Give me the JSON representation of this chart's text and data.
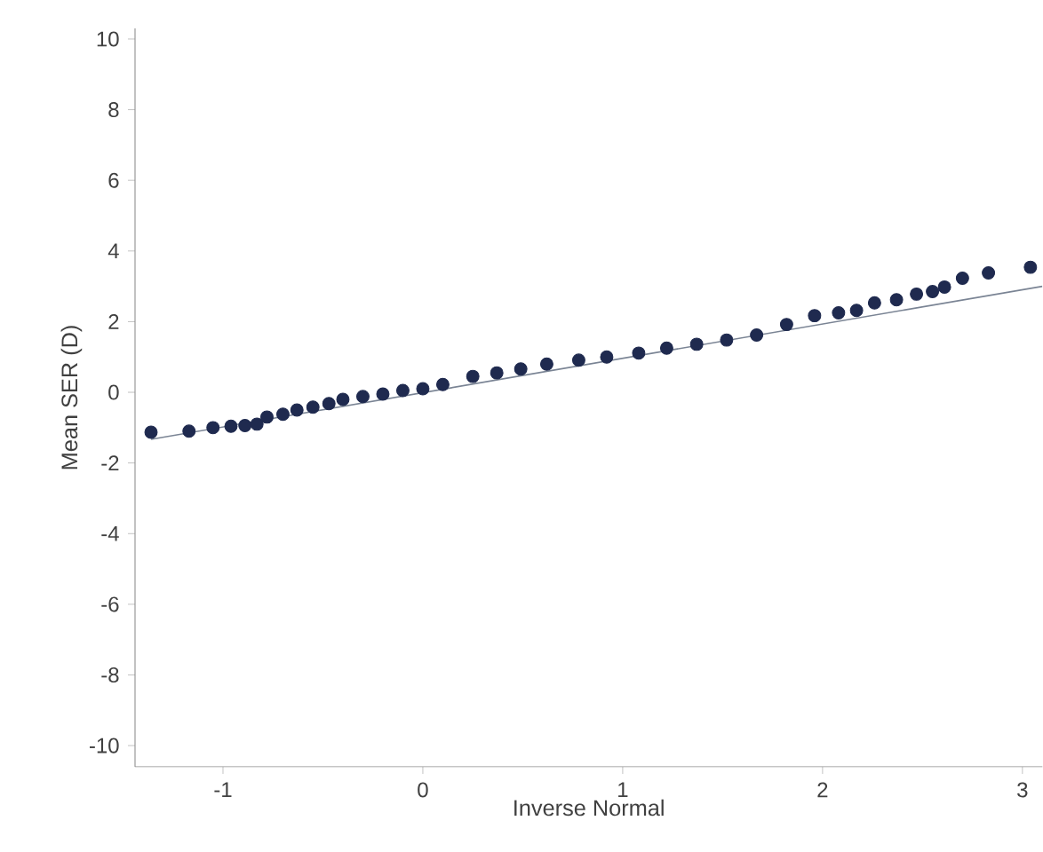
{
  "chart_data": {
    "type": "scatter",
    "xlabel": "Inverse Normal",
    "ylabel": "Mean SER (D)",
    "xlim": [
      -1.44,
      3.1
    ],
    "ylim": [
      -10.6,
      10.3
    ],
    "xticks": [
      -1,
      0,
      1,
      2,
      3
    ],
    "yticks": [
      -10,
      -8,
      -6,
      -4,
      -2,
      0,
      2,
      4,
      6,
      8,
      10
    ],
    "grid": false,
    "marker": "circle",
    "series": [
      {
        "color": "#1f2a4f",
        "x": [
          -1.36,
          -1.17,
          -1.05,
          -0.96,
          -0.89,
          -0.83,
          -0.78,
          -0.7,
          -0.63,
          -0.55,
          -0.47,
          -0.4,
          -0.3,
          -0.2,
          -0.1,
          0.0,
          0.1,
          0.25,
          0.37,
          0.49,
          0.62,
          0.78,
          0.92,
          1.08,
          1.22,
          1.37,
          1.52,
          1.67,
          1.82,
          1.96,
          2.08,
          2.17,
          2.26,
          2.37,
          2.47,
          2.55,
          2.61,
          2.7,
          2.83,
          3.04
        ],
        "values": [
          -1.13,
          -1.1,
          -1.0,
          -0.96,
          -0.94,
          -0.9,
          -0.7,
          -0.62,
          -0.5,
          -0.42,
          -0.32,
          -0.2,
          -0.12,
          -0.05,
          0.05,
          0.1,
          0.22,
          0.45,
          0.55,
          0.66,
          0.8,
          0.91,
          1.0,
          1.11,
          1.25,
          1.36,
          1.48,
          1.62,
          1.92,
          2.17,
          2.25,
          2.32,
          2.53,
          2.62,
          2.78,
          2.85,
          2.98,
          3.23,
          3.38,
          3.54
        ]
      },
      {
        "type": "line",
        "color": "#7a8494",
        "marker": "none",
        "x": [
          -1.36,
          3.1
        ],
        "values": [
          -1.33,
          3.0
        ]
      }
    ]
  }
}
